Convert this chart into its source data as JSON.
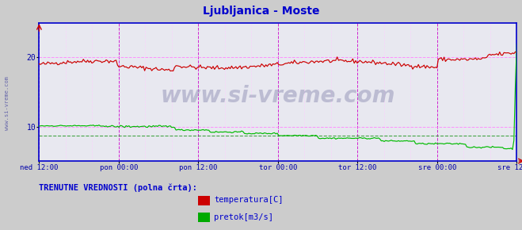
{
  "title": "Ljubljanica - Moste",
  "title_color": "#0000cc",
  "title_fontsize": 10,
  "bg_color": "#cccccc",
  "plot_bg_color": "#e8e8f0",
  "x_labels": [
    "ned 12:00",
    "pon 00:00",
    "pon 12:00",
    "tor 00:00",
    "tor 12:00",
    "sre 00:00",
    "sre 12:00"
  ],
  "x_label_color": "#0000aa",
  "y_ticks": [
    10,
    20
  ],
  "y_tick_color": "#0000aa",
  "y_min": 5,
  "y_max": 25,
  "grid_color_major": "#ff88ff",
  "grid_color_minor": "#ffccff",
  "vline_color": "#cc00cc",
  "watermark_text": "www.si-vreme.com",
  "watermark_color": "#9999bb",
  "watermark_fontsize": 20,
  "legend_label": "TRENUTNE VREDNOSTI (polna črta):",
  "legend_label_color": "#0000cc",
  "legend_label_fontsize": 7.5,
  "legend_items": [
    {
      "label": "temperatura[C]",
      "color": "#cc0000"
    },
    {
      "label": "pretok[m3/s]",
      "color": "#00aa00"
    }
  ],
  "axis_spine_color": "#0000cc",
  "temp_color": "#cc0000",
  "flow_color": "#00bb00",
  "flow_avg_color": "#008800",
  "n_points": 336
}
